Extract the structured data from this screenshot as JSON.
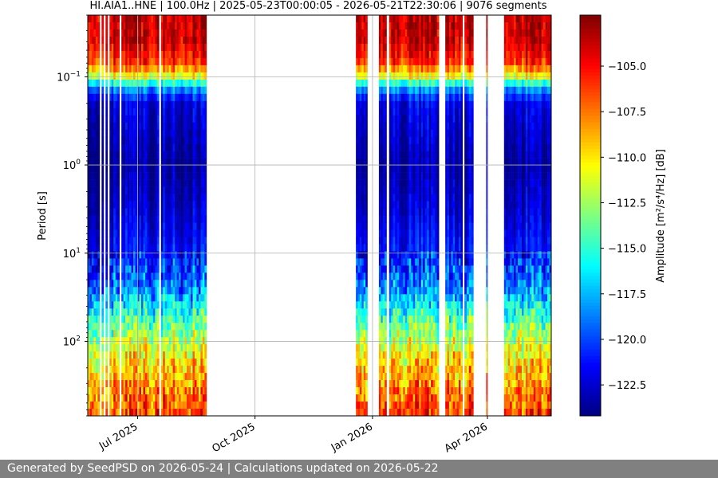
{
  "chart_data": {
    "type": "heatmap",
    "title": "HI.AIA1..HNE | 100.0Hz | 2025-05-23T00:00:05 - 2026-05-21T22:30:06 | 9076 segments",
    "xlabel": "",
    "ylabel": "Period [s]",
    "colorbar_label": "Amplitude [m²/s⁴/Hz] [dB]",
    "colormap": "jet",
    "x_range": [
      "2025-05-23",
      "2026-05-21"
    ],
    "x_ticks": [
      {
        "label": "Jul 2025",
        "date": "2025-07-01"
      },
      {
        "label": "Oct 2025",
        "date": "2025-10-01"
      },
      {
        "label": "Jan 2026",
        "date": "2026-01-01"
      },
      {
        "label": "Apr 2026",
        "date": "2026-04-01"
      }
    ],
    "y_scale": "log",
    "y_inverted": true,
    "y_range": [
      0.02,
      700
    ],
    "y_ticks": [
      {
        "base": "10",
        "exp": "−1",
        "value": 0.1
      },
      {
        "base": "10",
        "exp": "0",
        "value": 1
      },
      {
        "base": "10",
        "exp": "1",
        "value": 10
      },
      {
        "base": "10",
        "exp": "2",
        "value": 100
      }
    ],
    "color_range": [
      -124.2,
      -102.2
    ],
    "colorbar_ticks": [
      {
        "label": "−105.0",
        "value": -105.0
      },
      {
        "label": "−107.5",
        "value": -107.5
      },
      {
        "label": "−110.0",
        "value": -110.0
      },
      {
        "label": "−112.5",
        "value": -112.5
      },
      {
        "label": "−115.0",
        "value": -115.0
      },
      {
        "label": "−117.5",
        "value": -117.5
      },
      {
        "label": "−120.0",
        "value": -120.0
      },
      {
        "label": "−122.5",
        "value": -122.5
      }
    ],
    "grid": true,
    "data_periods": [
      {
        "start": "2025-05-23",
        "end": "2025-08-24"
      },
      {
        "start": "2025-12-19",
        "end": "2025-12-28"
      },
      {
        "start": "2026-01-06",
        "end": "2026-01-12"
      },
      {
        "start": "2026-01-14",
        "end": "2026-02-22"
      },
      {
        "start": "2026-02-27",
        "end": "2026-03-14"
      },
      {
        "start": "2026-03-14",
        "end": "2026-03-21"
      },
      {
        "start": "2026-03-31",
        "end": "2026-04-01"
      },
      {
        "start": "2026-04-14",
        "end": "2026-05-21"
      }
    ],
    "amplitude_profile": [
      {
        "period": 0.02,
        "db": -103.5
      },
      {
        "period": 0.04,
        "db": -103.8
      },
      {
        "period": 0.07,
        "db": -106.0
      },
      {
        "period": 0.1,
        "db": -111.0
      },
      {
        "period": 0.13,
        "db": -117.5
      },
      {
        "period": 0.2,
        "db": -122.0
      },
      {
        "period": 1,
        "db": -123.5
      },
      {
        "period": 3,
        "db": -122.5
      },
      {
        "period": 10,
        "db": -121.0
      },
      {
        "period": 25,
        "db": -118.5
      },
      {
        "period": 60,
        "db": -114.0
      },
      {
        "period": 150,
        "db": -110.0
      },
      {
        "period": 400,
        "db": -107.5
      },
      {
        "period": 700,
        "db": -106.0
      }
    ]
  },
  "footer": {
    "text": "Generated by SeedPSD on 2026-05-24 | Calculations updated on 2026-05-22"
  }
}
